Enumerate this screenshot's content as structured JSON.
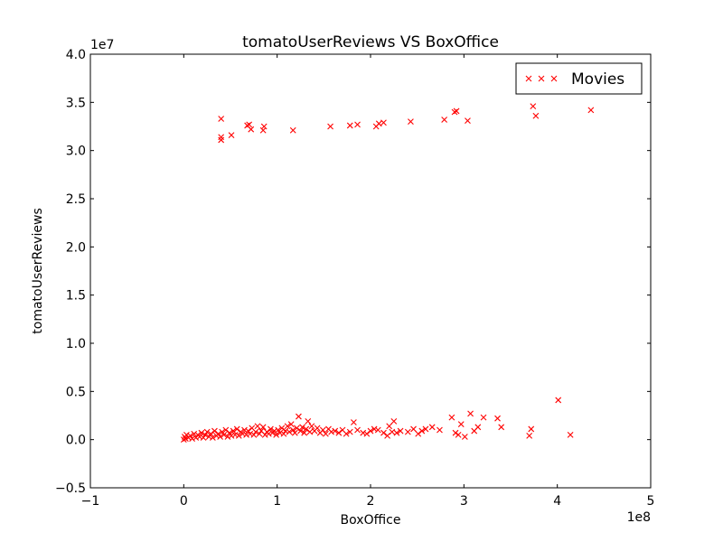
{
  "chart_data": {
    "type": "scatter",
    "title": "tomatoUserReviews VS BoxOffice",
    "xlabel": "BoxOffice",
    "ylabel": "tomatoUserReviews",
    "xlim": [
      -1,
      5
    ],
    "ylim": [
      -0.5,
      4.0
    ],
    "x_multiplier": "1e8",
    "y_multiplier": "1e7",
    "x_ticks": [
      -1,
      0,
      1,
      2,
      3,
      4,
      5
    ],
    "x_tick_labels": [
      "−1",
      "0",
      "1",
      "2",
      "3",
      "4",
      "5"
    ],
    "y_ticks": [
      -0.5,
      0.0,
      0.5,
      1.0,
      1.5,
      2.0,
      2.5,
      3.0,
      3.5,
      4.0
    ],
    "y_tick_labels": [
      "−0.5",
      "0.0",
      "0.5",
      "1.0",
      "1.5",
      "2.0",
      "2.5",
      "3.0",
      "3.5",
      "4.0"
    ],
    "marker": "x",
    "color": "#ff0000",
    "grid": false,
    "legend_position": "top-right",
    "series": [
      {
        "name": "Movies",
        "points": [
          [
            0.4,
            3.33
          ],
          [
            0.4,
            3.14
          ],
          [
            0.4,
            3.11
          ],
          [
            0.51,
            3.16
          ],
          [
            0.68,
            3.26
          ],
          [
            0.7,
            3.27
          ],
          [
            0.72,
            3.22
          ],
          [
            0.85,
            3.21
          ],
          [
            0.86,
            3.25
          ],
          [
            1.17,
            3.21
          ],
          [
            1.57,
            3.25
          ],
          [
            1.78,
            3.26
          ],
          [
            1.86,
            3.27
          ],
          [
            2.06,
            3.25
          ],
          [
            2.09,
            3.28
          ],
          [
            2.14,
            3.29
          ],
          [
            2.43,
            3.3
          ],
          [
            2.79,
            3.32
          ],
          [
            2.9,
            3.4
          ],
          [
            2.92,
            3.41
          ],
          [
            3.04,
            3.31
          ],
          [
            3.74,
            3.46
          ],
          [
            3.77,
            3.36
          ],
          [
            4.36,
            3.42
          ],
          [
            0.0,
            0.0
          ],
          [
            0.01,
            0.03
          ],
          [
            0.02,
            0.01
          ],
          [
            0.03,
            0.05
          ],
          [
            0.05,
            0.02
          ],
          [
            0.07,
            0.04
          ],
          [
            0.09,
            0.01
          ],
          [
            0.11,
            0.06
          ],
          [
            0.13,
            0.02
          ],
          [
            0.15,
            0.05
          ],
          [
            0.17,
            0.03
          ],
          [
            0.19,
            0.07
          ],
          [
            0.21,
            0.02
          ],
          [
            0.23,
            0.05
          ],
          [
            0.25,
            0.08
          ],
          [
            0.27,
            0.03
          ],
          [
            0.29,
            0.06
          ],
          [
            0.31,
            0.02
          ],
          [
            0.33,
            0.09
          ],
          [
            0.35,
            0.04
          ],
          [
            0.37,
            0.06
          ],
          [
            0.39,
            0.03
          ],
          [
            0.41,
            0.08
          ],
          [
            0.43,
            0.05
          ],
          [
            0.45,
            0.1
          ],
          [
            0.47,
            0.03
          ],
          [
            0.49,
            0.07
          ],
          [
            0.51,
            0.04
          ],
          [
            0.53,
            0.09
          ],
          [
            0.55,
            0.05
          ],
          [
            0.57,
            0.11
          ],
          [
            0.59,
            0.04
          ],
          [
            0.61,
            0.08
          ],
          [
            0.63,
            0.06
          ],
          [
            0.65,
            0.1
          ],
          [
            0.67,
            0.05
          ],
          [
            0.69,
            0.09
          ],
          [
            0.71,
            0.06
          ],
          [
            0.73,
            0.12
          ],
          [
            0.75,
            0.05
          ],
          [
            0.77,
            0.08
          ],
          [
            0.79,
            0.14
          ],
          [
            0.81,
            0.06
          ],
          [
            0.83,
            0.09
          ],
          [
            0.85,
            0.13
          ],
          [
            0.87,
            0.05
          ],
          [
            0.89,
            0.08
          ],
          [
            0.91,
            0.06
          ],
          [
            0.93,
            0.11
          ],
          [
            0.95,
            0.07
          ],
          [
            0.97,
            0.09
          ],
          [
            0.99,
            0.05
          ],
          [
            1.01,
            0.1
          ],
          [
            1.03,
            0.07
          ],
          [
            1.05,
            0.12
          ],
          [
            1.07,
            0.06
          ],
          [
            1.09,
            0.09
          ],
          [
            1.11,
            0.14
          ],
          [
            1.13,
            0.08
          ],
          [
            1.15,
            0.16
          ],
          [
            1.17,
            0.1
          ],
          [
            1.19,
            0.07
          ],
          [
            1.21,
            0.12
          ],
          [
            1.23,
            0.24
          ],
          [
            1.25,
            0.09
          ],
          [
            1.27,
            0.13
          ],
          [
            1.29,
            0.07
          ],
          [
            1.31,
            0.11
          ],
          [
            1.33,
            0.19
          ],
          [
            1.35,
            0.08
          ],
          [
            1.37,
            0.14
          ],
          [
            1.4,
            0.09
          ],
          [
            1.43,
            0.12
          ],
          [
            1.46,
            0.07
          ],
          [
            1.49,
            0.1
          ],
          [
            1.52,
            0.06
          ],
          [
            1.55,
            0.11
          ],
          [
            1.58,
            0.08
          ],
          [
            1.62,
            0.09
          ],
          [
            1.66,
            0.07
          ],
          [
            1.7,
            0.1
          ],
          [
            1.74,
            0.06
          ],
          [
            1.78,
            0.08
          ],
          [
            1.82,
            0.18
          ],
          [
            1.86,
            0.1
          ],
          [
            1.92,
            0.07
          ],
          [
            1.96,
            0.06
          ],
          [
            2.0,
            0.09
          ],
          [
            2.04,
            0.11
          ],
          [
            2.08,
            0.1
          ],
          [
            2.14,
            0.07
          ],
          [
            2.18,
            0.04
          ],
          [
            2.2,
            0.14
          ],
          [
            2.23,
            0.08
          ],
          [
            2.25,
            0.19
          ],
          [
            2.28,
            0.07
          ],
          [
            2.32,
            0.09
          ],
          [
            2.4,
            0.08
          ],
          [
            2.46,
            0.11
          ],
          [
            2.51,
            0.06
          ],
          [
            2.55,
            0.09
          ],
          [
            2.59,
            0.11
          ],
          [
            2.66,
            0.13
          ],
          [
            2.74,
            0.1
          ],
          [
            2.87,
            0.23
          ],
          [
            2.91,
            0.07
          ],
          [
            2.94,
            0.05
          ],
          [
            2.97,
            0.16
          ],
          [
            3.01,
            0.03
          ],
          [
            3.07,
            0.27
          ],
          [
            3.11,
            0.09
          ],
          [
            3.15,
            0.13
          ],
          [
            3.21,
            0.23
          ],
          [
            3.36,
            0.22
          ],
          [
            3.4,
            0.13
          ],
          [
            3.7,
            0.04
          ],
          [
            3.72,
            0.11
          ],
          [
            4.01,
            0.41
          ],
          [
            4.14,
            0.05
          ]
        ]
      }
    ]
  }
}
